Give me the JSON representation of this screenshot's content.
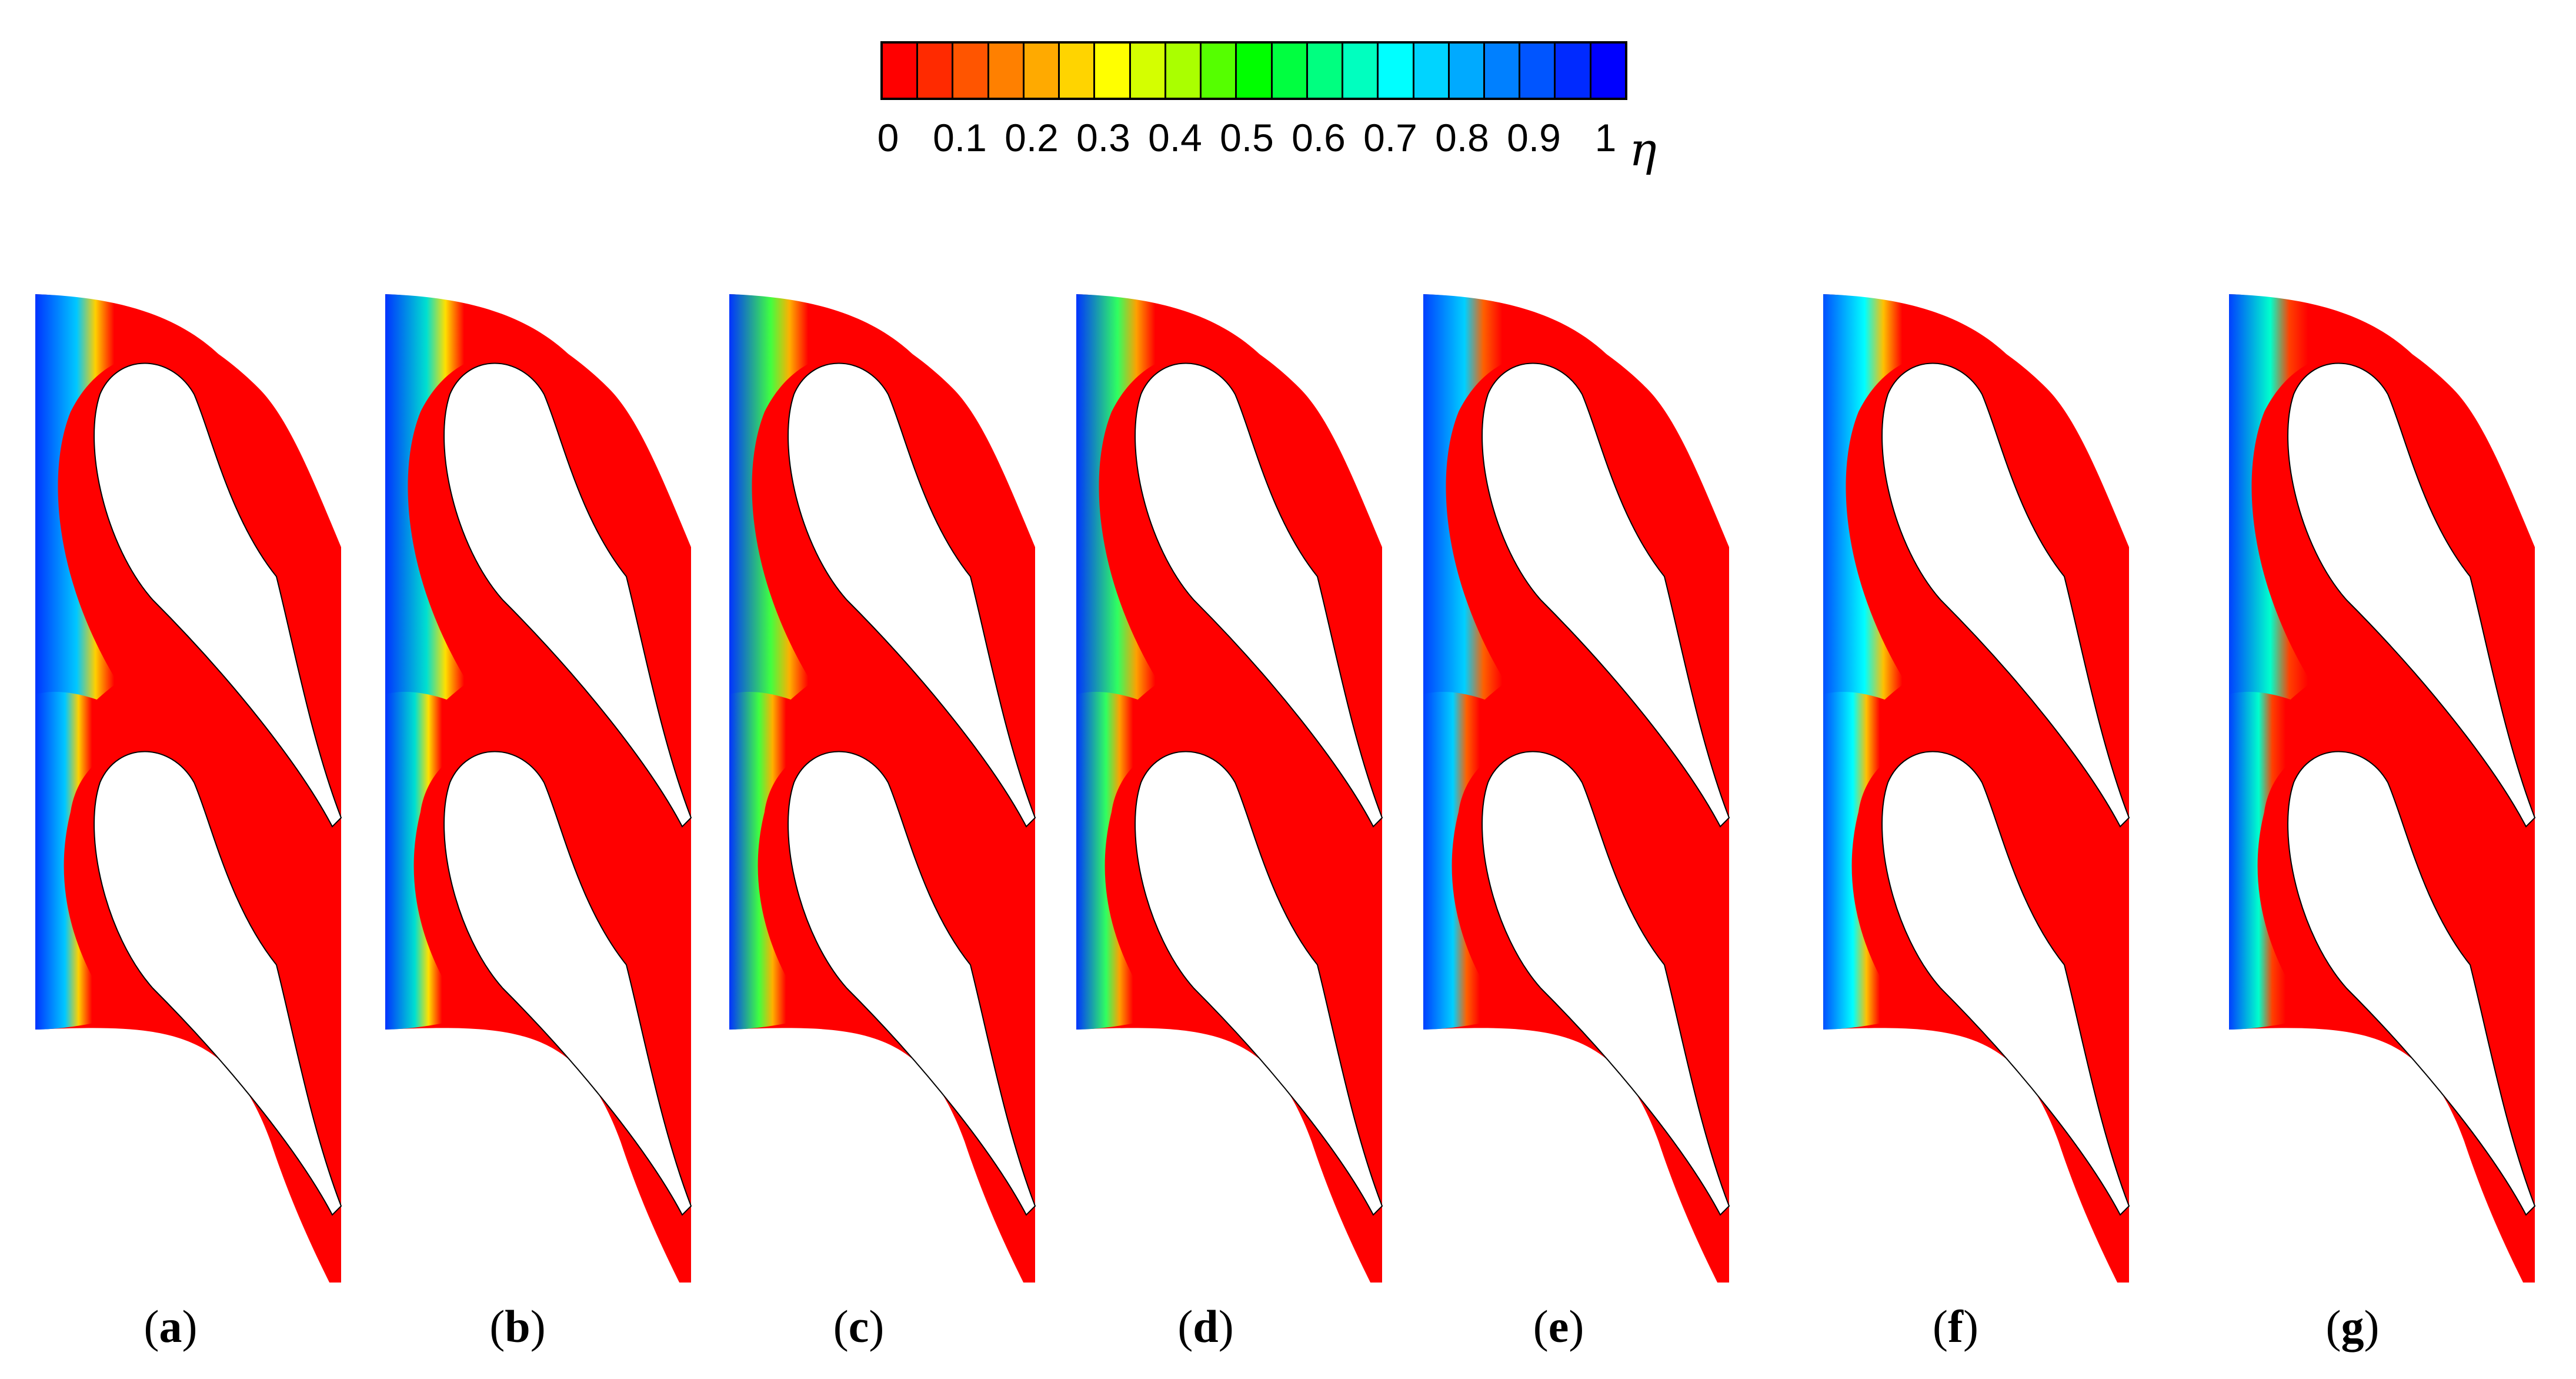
{
  "colorbar": {
    "variable": "η",
    "ticks": [
      "0",
      "0.1",
      "0.2",
      "0.3",
      "0.4",
      "0.5",
      "0.6",
      "0.7",
      "0.8",
      "0.9",
      "1"
    ],
    "range": [
      0,
      1
    ],
    "colors": [
      "#ff0000",
      "#ff2a00",
      "#ff5500",
      "#ff8000",
      "#ffaa00",
      "#ffd400",
      "#ffff00",
      "#d4ff00",
      "#aaff00",
      "#55ff00",
      "#00ff00",
      "#00ff40",
      "#00ff80",
      "#00ffbf",
      "#00ffff",
      "#00d4ff",
      "#00aaff",
      "#0080ff",
      "#0055ff",
      "#002aff",
      "#0000ff"
    ]
  },
  "panels": [
    {
      "letter": "a",
      "open": "(",
      "close": ")",
      "blue": "#0033ff",
      "band": "#00c8ff",
      "accent": "#ffd000"
    },
    {
      "letter": "b",
      "open": "(",
      "close": ")",
      "blue": "#0033ff",
      "band": "#00e0d0",
      "accent": "#ffe000"
    },
    {
      "letter": "c",
      "open": "(",
      "close": ")",
      "blue": "#0033ff",
      "band": "#40ff40",
      "accent": "#ffb000"
    },
    {
      "letter": "d",
      "open": "(",
      "close": ")",
      "blue": "#0033ff",
      "band": "#30ff60",
      "accent": "#ffa000"
    },
    {
      "letter": "e",
      "open": "(",
      "close": ")",
      "blue": "#0040ff",
      "band": "#00d0ff",
      "accent": "#ff6000"
    },
    {
      "letter": "f",
      "open": "(",
      "close": ")",
      "blue": "#0050ff",
      "band": "#00ffff",
      "accent": "#ffc000"
    },
    {
      "letter": "g",
      "open": "(",
      "close": ")",
      "blue": "#0040ff",
      "band": "#00ffcc",
      "accent": "#ff4000"
    }
  ]
}
